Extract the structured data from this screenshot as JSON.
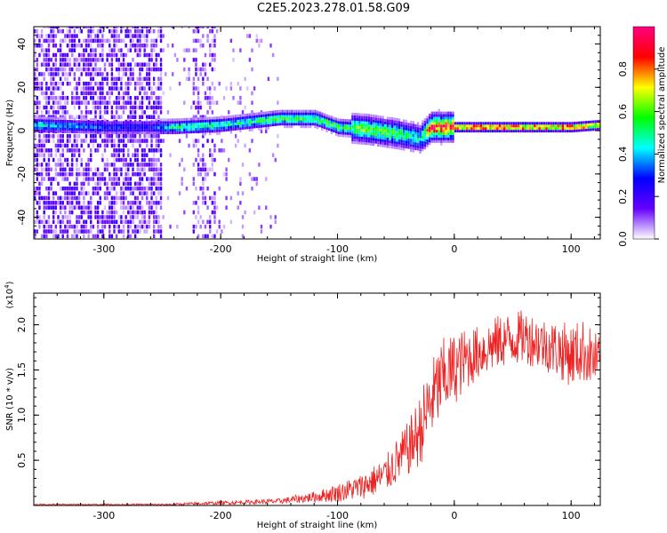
{
  "title": "C2E5.2023.278.01.58.G09",
  "chart_data": [
    {
      "type": "heatmap",
      "xlabel": "Height of straight line (km)",
      "ylabel": "Frequency (Hz)",
      "xlim": [
        -360,
        125
      ],
      "ylim": [
        -50,
        48
      ],
      "x_ticks": [
        -300,
        -200,
        -100,
        0,
        100
      ],
      "x_tick_labels": [
        "-300",
        "-200",
        "-100",
        "0",
        "100"
      ],
      "y_ticks": [
        -40,
        -20,
        0,
        20,
        40
      ],
      "y_tick_labels": [
        "-40",
        "-20",
        "0",
        "20",
        "40"
      ],
      "colorbar": {
        "label": "Normalized spectral amplitude",
        "range": [
          0,
          1
        ],
        "ticks": [
          0.0,
          0.2,
          0.4,
          0.6,
          0.8
        ],
        "tick_labels": [
          "0.0",
          "0.2",
          "0.4",
          "0.6",
          "0.8"
        ],
        "colors": [
          "#ffffff",
          "#6600ff",
          "#0000ff",
          "#00ffff",
          "#00ff00",
          "#ffff00",
          "#ff0000",
          "#ff0080"
        ]
      },
      "ridge": [
        {
          "x": -360,
          "freq": 2,
          "amp": 0.45
        },
        {
          "x": -300,
          "freq": 1,
          "amp": 0.3
        },
        {
          "x": -260,
          "freq": 1,
          "amp": 0.28
        },
        {
          "x": -240,
          "freq": 1,
          "amp": 0.5
        },
        {
          "x": -200,
          "freq": 2,
          "amp": 0.48
        },
        {
          "x": -150,
          "freq": 5,
          "amp": 0.55
        },
        {
          "x": -120,
          "freq": 5,
          "amp": 0.58
        },
        {
          "x": -100,
          "freq": 1,
          "amp": 0.55
        },
        {
          "x": -75,
          "freq": 0,
          "amp": 0.6
        },
        {
          "x": -50,
          "freq": -2,
          "amp": 0.55
        },
        {
          "x": -30,
          "freq": -4,
          "amp": 0.45
        },
        {
          "x": -20,
          "freq": 1,
          "amp": 0.9
        },
        {
          "x": 0,
          "freq": 1,
          "amp": 0.9
        },
        {
          "x": 50,
          "freq": 1,
          "amp": 0.9
        },
        {
          "x": 100,
          "freq": 1,
          "amp": 0.85
        },
        {
          "x": 125,
          "freq": 2,
          "amp": 0.75
        }
      ]
    },
    {
      "type": "line",
      "xlabel": "Height of straight line (km)",
      "ylabel": "SNR (10 * v/v)",
      "y_scale_label": "(x10",
      "y_scale_exp": "4",
      "y_scale_close": ")",
      "xlim": [
        -360,
        125
      ],
      "ylim": [
        0,
        2.35
      ],
      "x_ticks": [
        -300,
        -200,
        -100,
        0,
        100
      ],
      "x_tick_labels": [
        "-300",
        "-200",
        "-100",
        "0",
        "100"
      ],
      "y_ticks": [
        0.5,
        1.0,
        1.5,
        2.0
      ],
      "y_tick_labels": [
        "0.5",
        "1.0",
        "1.5",
        "2.0"
      ],
      "line_color": "#ee2222",
      "series": [
        {
          "name": "SNR",
          "x": [
            -360,
            -300,
            -250,
            -200,
            -150,
            -120,
            -100,
            -80,
            -60,
            -50,
            -40,
            -30,
            -20,
            -10,
            0,
            10,
            20,
            40,
            60,
            80,
            100,
            110,
            125
          ],
          "y": [
            0.01,
            0.01,
            0.01,
            0.03,
            0.05,
            0.1,
            0.15,
            0.22,
            0.35,
            0.5,
            0.65,
            0.85,
            1.2,
            1.45,
            1.55,
            1.65,
            1.72,
            1.85,
            1.9,
            1.8,
            1.7,
            1.75,
            1.6
          ],
          "noise": [
            0.01,
            0.01,
            0.01,
            0.02,
            0.03,
            0.06,
            0.1,
            0.14,
            0.2,
            0.25,
            0.3,
            0.4,
            0.45,
            0.45,
            0.4,
            0.35,
            0.3,
            0.3,
            0.3,
            0.3,
            0.35,
            0.35,
            0.3
          ]
        }
      ]
    }
  ]
}
